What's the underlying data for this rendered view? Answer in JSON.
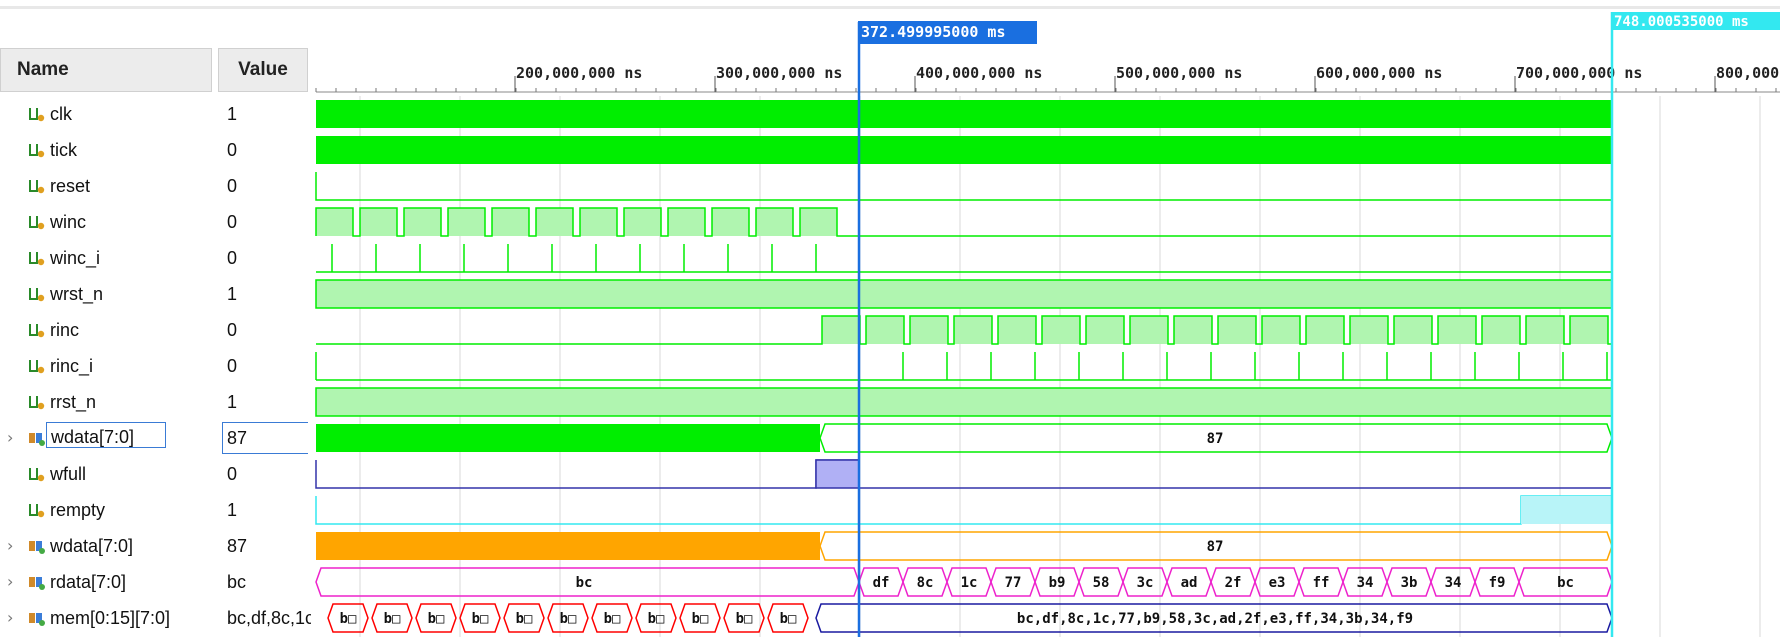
{
  "headers": {
    "name": "Name",
    "value": "Value"
  },
  "cursor": {
    "label": "372.499995000 ms"
  },
  "end_marker": {
    "label": "748.000535000 ms"
  },
  "timeline": {
    "ticks": [
      "200,000,000 ns",
      "300,000,000 ns",
      "400,000,000 ns",
      "500,000,000 ns",
      "600,000,000 ns",
      "700,000,000 ns",
      "800,000"
    ]
  },
  "signals": [
    {
      "name": "clk",
      "value": "1",
      "icon": "logic-signal-icon",
      "expandable": false
    },
    {
      "name": "tick",
      "value": "0",
      "icon": "logic-signal-icon",
      "expandable": false
    },
    {
      "name": "reset",
      "value": "0",
      "icon": "logic-signal-icon",
      "expandable": false
    },
    {
      "name": "winc",
      "value": "0",
      "icon": "logic-signal-icon",
      "expandable": false
    },
    {
      "name": "winc_i",
      "value": "0",
      "icon": "logic-signal-icon",
      "expandable": false
    },
    {
      "name": "wrst_n",
      "value": "1",
      "icon": "logic-signal-icon",
      "expandable": false
    },
    {
      "name": "rinc",
      "value": "0",
      "icon": "logic-signal-icon",
      "expandable": false
    },
    {
      "name": "rinc_i",
      "value": "0",
      "icon": "logic-signal-icon",
      "expandable": false
    },
    {
      "name": "rrst_n",
      "value": "1",
      "icon": "logic-signal-icon",
      "expandable": false
    },
    {
      "name": "wdata[7:0]",
      "value": "87",
      "icon": "bus-signal-icon",
      "expandable": true,
      "selected": true
    },
    {
      "name": "wfull",
      "value": "0",
      "icon": "logic-signal-icon",
      "expandable": false
    },
    {
      "name": "rempty",
      "value": "1",
      "icon": "logic-signal-icon",
      "expandable": false
    },
    {
      "name": "wdata[7:0]",
      "value": "87",
      "icon": "bus-signal-icon",
      "expandable": true
    },
    {
      "name": "rdata[7:0]",
      "value": "bc",
      "icon": "bus-signal-icon",
      "expandable": true
    },
    {
      "name": "mem[0:15][7:0]",
      "value": "bc,df,8c,1c",
      "icon": "bus-signal-icon",
      "expandable": true
    }
  ],
  "bus_values": {
    "wdata_after": "87",
    "wdata2_after": "87",
    "rdata_before": "bc",
    "rdata_seq": [
      "df",
      "8c",
      "1c",
      "77",
      "b9",
      "58",
      "3c",
      "ad",
      "2f",
      "e3",
      "ff",
      "34",
      "3b",
      "34",
      "f9",
      "bc"
    ],
    "mem_seg": "b□",
    "mem_after": "bc,df,8c,1c,77,b9,58,3c,ad,2f,e3,ff,34,3b,34,f9"
  },
  "colors": {
    "green": "#00ee00",
    "green_fill": "#b0f5b0",
    "wfull": "#3333aa",
    "wfull_fill": "#b0b0f5",
    "rempty": "#33e8f0",
    "rempty_fill": "#b8f4f8",
    "orange": "#ffa500",
    "magenta": "#ee22cc",
    "red": "#ff0000",
    "navy": "#1a1aa0",
    "cursor": "#1a6fe0",
    "end_marker": "#33e8f0"
  }
}
